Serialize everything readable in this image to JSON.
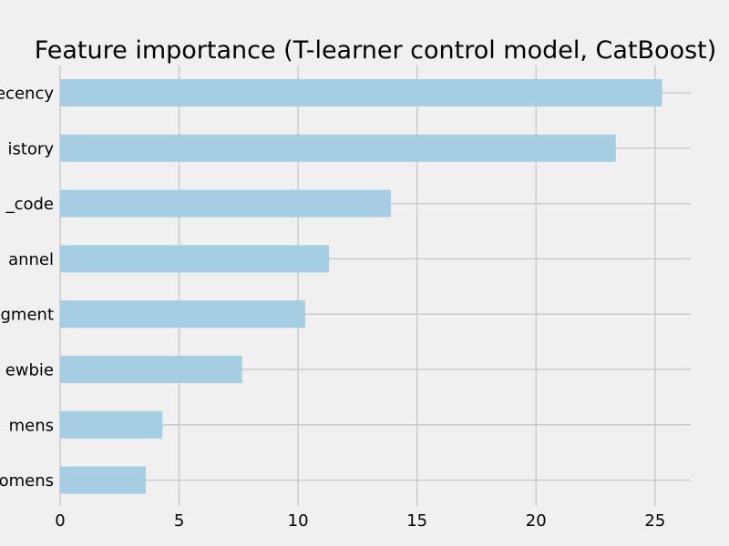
{
  "chart_data": {
    "type": "bar",
    "orientation": "horizontal",
    "title": "Feature importance (T-learner control model, CatBoost)",
    "xlabel": "",
    "ylabel": "",
    "categories": [
      "recency",
      "history",
      "zip_code",
      "channel",
      "segment",
      "newbie",
      "mens",
      "womens"
    ],
    "category_labels_visible": [
      "ecency",
      "istory",
      "_code",
      "annel",
      "gment",
      "ewbie",
      "mens",
      "omens"
    ],
    "values": [
      25.3,
      23.35,
      13.9,
      11.3,
      10.3,
      7.65,
      4.3,
      3.6
    ],
    "xlim": [
      0,
      26.5
    ],
    "xticks": [
      0,
      5,
      10,
      15,
      20,
      25
    ],
    "xtick_labels": [
      "0",
      "5",
      "10",
      "15",
      "20",
      "25"
    ],
    "grid": true,
    "legend": "none",
    "bar_color": "#a6cee3",
    "background_color": "#f0f0f0",
    "grid_color": "#cbcbcb"
  }
}
